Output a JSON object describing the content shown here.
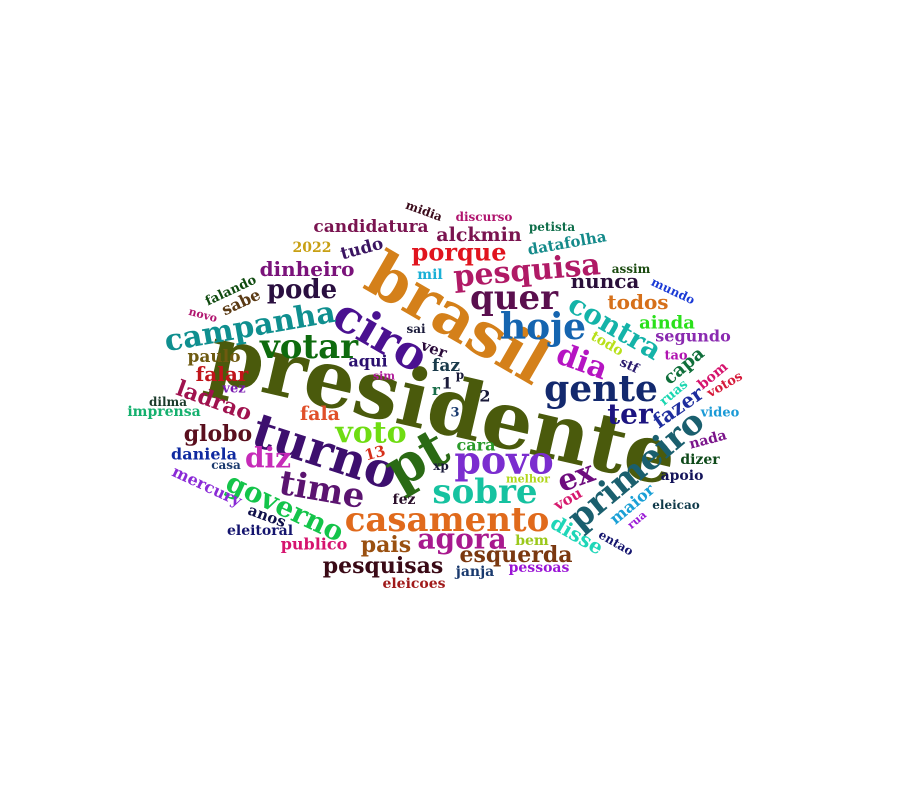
{
  "word_cloud": {
    "words": [
      {
        "text": "presidente",
        "color": "#4a5a0c"
      },
      {
        "text": "brasil",
        "color": "#d4801a"
      },
      {
        "text": "turno",
        "color": "#3d0f6e"
      },
      {
        "text": "ciro",
        "color": "#4a1190"
      },
      {
        "text": "pt",
        "color": "#2a6a14"
      },
      {
        "text": "povo",
        "color": "#7b2dcf"
      },
      {
        "text": "hoje",
        "color": "#1565b0"
      },
      {
        "text": "gente",
        "color": "#13296e"
      },
      {
        "text": "votar",
        "color": "#0e6b0e"
      },
      {
        "text": "quer",
        "color": "#5a0f4e"
      },
      {
        "text": "campanha",
        "color": "#0f8f8f"
      },
      {
        "text": "time",
        "color": "#5b1470"
      },
      {
        "text": "sobre",
        "color": "#16c2a0"
      },
      {
        "text": "casamento",
        "color": "#e06a1c"
      },
      {
        "text": "primeiro",
        "color": "#1a5f6e"
      },
      {
        "text": "voto",
        "color": "#6fdc12"
      },
      {
        "text": "pesquisa",
        "color": "#b01a66"
      },
      {
        "text": "contra",
        "color": "#14b3a8"
      },
      {
        "text": "dia",
        "color": "#b514c2"
      },
      {
        "text": "governo",
        "color": "#14c44a"
      },
      {
        "text": "agora",
        "color": "#a8198e"
      },
      {
        "text": "ex",
        "color": "#6e0c7e"
      },
      {
        "text": "ter",
        "color": "#1c1480"
      },
      {
        "text": "diz",
        "color": "#c62bb8"
      },
      {
        "text": "pode",
        "color": "#2a0f40"
      },
      {
        "text": "porque",
        "color": "#e0141e"
      },
      {
        "text": "ladrao",
        "color": "#a0124e"
      },
      {
        "text": "globo",
        "color": "#5a0f1e"
      },
      {
        "text": "fazer",
        "color": "#1e2d9e"
      },
      {
        "text": "esquerda",
        "color": "#7a3810"
      },
      {
        "text": "pais",
        "color": "#9a5010"
      },
      {
        "text": "pesquisas",
        "color": "#3a0a16"
      },
      {
        "text": "nunca",
        "color": "#2a0f3a"
      },
      {
        "text": "todos",
        "color": "#d6701a"
      },
      {
        "text": "dinheiro",
        "color": "#7a127a"
      },
      {
        "text": "alckmin",
        "color": "#7a1450"
      },
      {
        "text": "candidatura",
        "color": "#7a1450"
      },
      {
        "text": "disse",
        "color": "#1ed6b8"
      },
      {
        "text": "capa",
        "color": "#0f6e3a"
      },
      {
        "text": "falar",
        "color": "#c0141a"
      },
      {
        "text": "paulo",
        "color": "#6e5a10"
      },
      {
        "text": "ainda",
        "color": "#2ae01a"
      },
      {
        "text": "fala",
        "color": "#e0502a"
      },
      {
        "text": "mercury",
        "color": "#8a2ad6"
      },
      {
        "text": "datafolha",
        "color": "#148a8a"
      },
      {
        "text": "tudo",
        "color": "#3a1460"
      },
      {
        "text": "daniela",
        "color": "#0f2aa0"
      },
      {
        "text": "segundo",
        "color": "#8a2ab0"
      },
      {
        "text": "faz",
        "color": "#1a3a4a"
      },
      {
        "text": "aqui",
        "color": "#2a0f6e"
      },
      {
        "text": "cara",
        "color": "#2a9a2a"
      },
      {
        "text": "sabe",
        "color": "#5a3a14"
      },
      {
        "text": "maior",
        "color": "#1aa0d6"
      },
      {
        "text": "publico",
        "color": "#d6146e"
      },
      {
        "text": "janja",
        "color": "#1a3a6e"
      },
      {
        "text": "pessoas",
        "color": "#9a14d6"
      },
      {
        "text": "eleicoes",
        "color": "#a01a1a"
      },
      {
        "text": "eleitoral",
        "color": "#14146e"
      },
      {
        "text": "2022",
        "color": "#c8a014"
      },
      {
        "text": "ver",
        "color": "#2a0a3a"
      },
      {
        "text": "anos",
        "color": "#0f0f4a"
      },
      {
        "text": "13",
        "color": "#d6301a"
      },
      {
        "text": "vou",
        "color": "#d61a6e"
      },
      {
        "text": "mil",
        "color": "#1ab0d6"
      },
      {
        "text": "todo",
        "color": "#b8e01a"
      },
      {
        "text": "apoio",
        "color": "#14145a"
      },
      {
        "text": "dizer",
        "color": "#0f4a1a"
      },
      {
        "text": "bem",
        "color": "#9ac81a"
      },
      {
        "text": "entao",
        "color": "#14146e"
      },
      {
        "text": "fez",
        "color": "#2a0f2a"
      },
      {
        "text": "imprensa",
        "color": "#14b06e"
      },
      {
        "text": "falando",
        "color": "#0f4a0f"
      },
      {
        "text": "ruas",
        "color": "#1ad6b0"
      },
      {
        "text": "bom",
        "color": "#d6146e"
      },
      {
        "text": "votos",
        "color": "#d61a3a"
      },
      {
        "text": "vez",
        "color": "#7a1ab0"
      },
      {
        "text": "nada",
        "color": "#7a148a"
      },
      {
        "text": "video",
        "color": "#1a9ad6"
      },
      {
        "text": "discurso",
        "color": "#b0146e"
      },
      {
        "text": "midia",
        "color": "#3a0a1a"
      },
      {
        "text": "stf",
        "color": "#2a1a6e"
      },
      {
        "text": "tao",
        "color": "#b014b0"
      },
      {
        "text": "casa",
        "color": "#1a3a6e"
      },
      {
        "text": "sai",
        "color": "#1a1a3a"
      },
      {
        "text": "1",
        "color": "#1a1a3a"
      },
      {
        "text": "2",
        "color": "#1a1a3a"
      },
      {
        "text": "3",
        "color": "#1a3a6e"
      },
      {
        "text": "r",
        "color": "#1a6e4a"
      },
      {
        "text": "p",
        "color": "#1a1a3a"
      },
      {
        "text": "sim",
        "color": "#b01a9a"
      },
      {
        "text": "xp",
        "color": "#1a1a3a"
      },
      {
        "text": "melhor",
        "color": "#b0d61a"
      },
      {
        "text": "petista",
        "color": "#0f6e4a"
      },
      {
        "text": "assim",
        "color": "#1a4a0f"
      },
      {
        "text": "mundo",
        "color": "#1a3ad6"
      },
      {
        "text": "novo",
        "color": "#b0146e"
      },
      {
        "text": "dilma",
        "color": "#1a3a2a"
      },
      {
        "text": "rua",
        "color": "#9a1ad6"
      },
      {
        "text": "eleicao",
        "color": "#0f3a4a"
      }
    ]
  }
}
